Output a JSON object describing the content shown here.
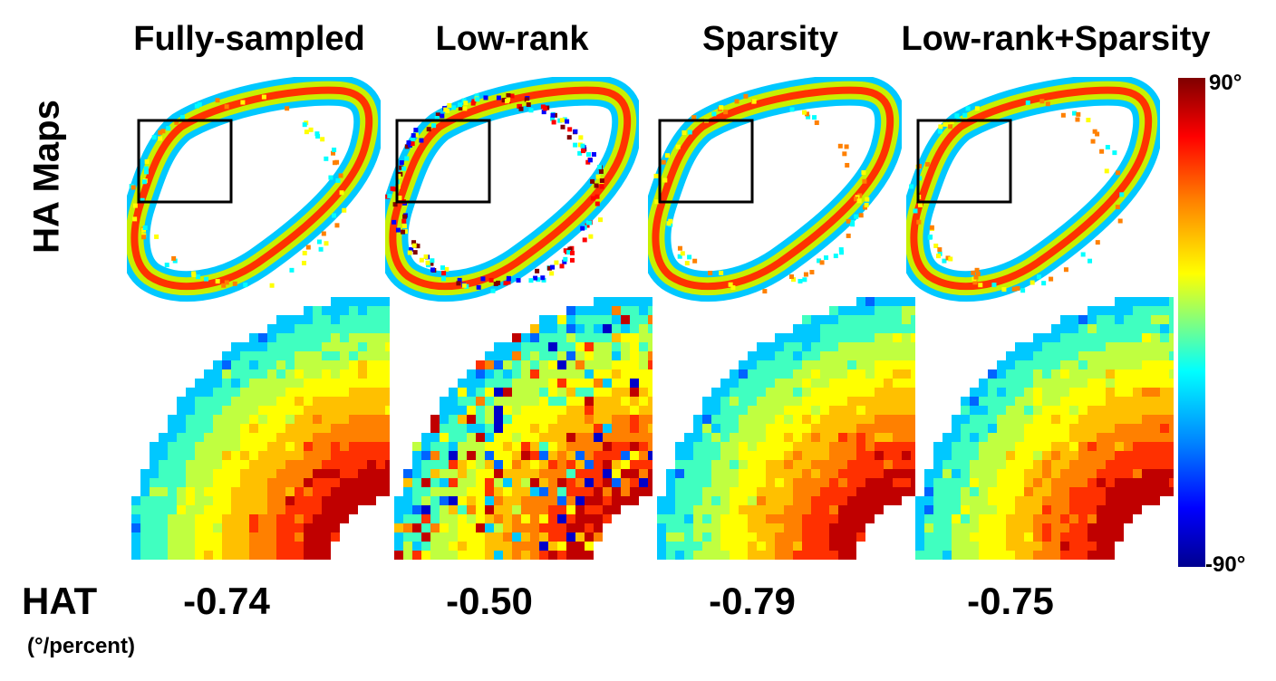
{
  "panels": [
    {
      "title": "Fully-sampled",
      "hat": "-0.74"
    },
    {
      "title": "Low-rank",
      "hat": "-0.50"
    },
    {
      "title": "Sparsity",
      "hat": "-0.79"
    },
    {
      "title": "Low-rank+Sparsity",
      "hat": "-0.75"
    }
  ],
  "row_label": "HA Maps",
  "hat_label": "HAT",
  "hat_unit": "(°/percent)",
  "colorbar": {
    "max_label": "90°",
    "min_label": "-90°"
  },
  "colors": {
    "outer": "#00c8ff",
    "mid": "#c8f000",
    "inner": "#ff3200",
    "box": "#000000"
  }
}
